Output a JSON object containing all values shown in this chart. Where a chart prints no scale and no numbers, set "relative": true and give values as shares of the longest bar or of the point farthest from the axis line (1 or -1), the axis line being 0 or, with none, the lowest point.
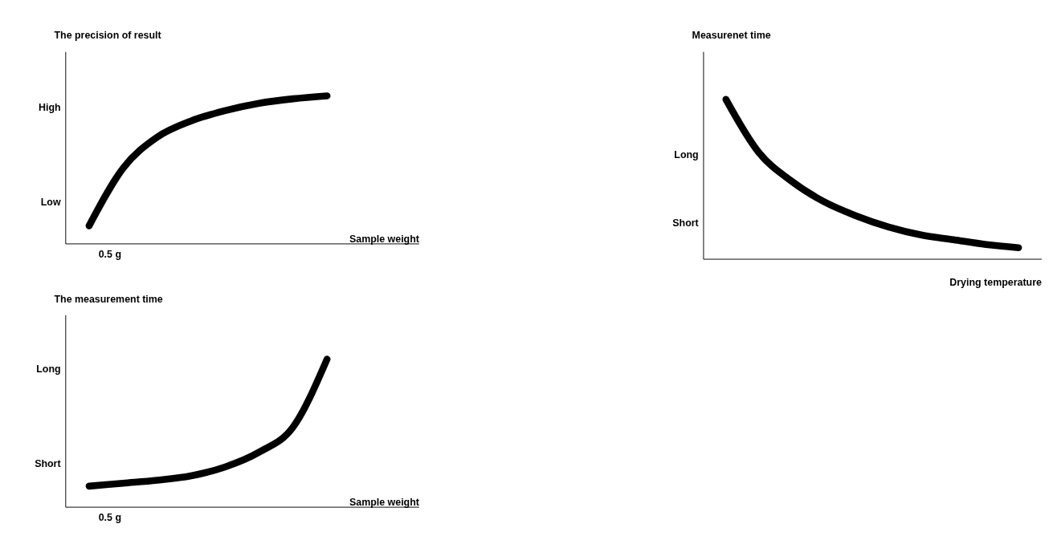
{
  "chart_data": [
    {
      "type": "line",
      "relative": true,
      "ylabel": "The precision of result",
      "xlabel": "Sample weight",
      "annotations": [
        "High",
        "Low",
        "0.5 g"
      ],
      "categories": [
        null,
        null,
        null,
        null,
        null,
        null,
        null,
        null,
        null,
        null
      ],
      "series": [
        {
          "color": "#000000",
          "values": [
            0.12,
            0.51,
            0.72,
            0.83,
            0.9,
            0.95,
            0.98,
            1,
            null,
            null
          ]
        }
      ]
    },
    {
      "type": "line",
      "relative": true,
      "ylabel": "The measurement time",
      "xlabel": "Sample weight",
      "annotations": [
        "Long",
        "Short",
        "0.5 g"
      ],
      "categories": [
        null,
        null,
        null,
        null,
        null,
        null,
        null,
        null,
        null,
        null
      ],
      "series": [
        {
          "color": "#000000",
          "values": [
            0.14,
            0.16,
            0.18,
            0.21,
            0.27,
            0.37,
            0.54,
            1,
            null,
            null
          ]
        }
      ]
    },
    {
      "type": "line",
      "relative": true,
      "ylabel": "Measurenet time",
      "xlabel": "Drying temperature",
      "annotations": [
        "Long",
        "Short"
      ],
      "categories": [
        null,
        null,
        null,
        null,
        null,
        null,
        null,
        null,
        null,
        null
      ],
      "series": [
        {
          "color": "#000000",
          "values": [
            1,
            0.67,
            0.49,
            0.36,
            0.27,
            0.2,
            0.15,
            0.12,
            0.09,
            0.07
          ]
        }
      ]
    }
  ]
}
